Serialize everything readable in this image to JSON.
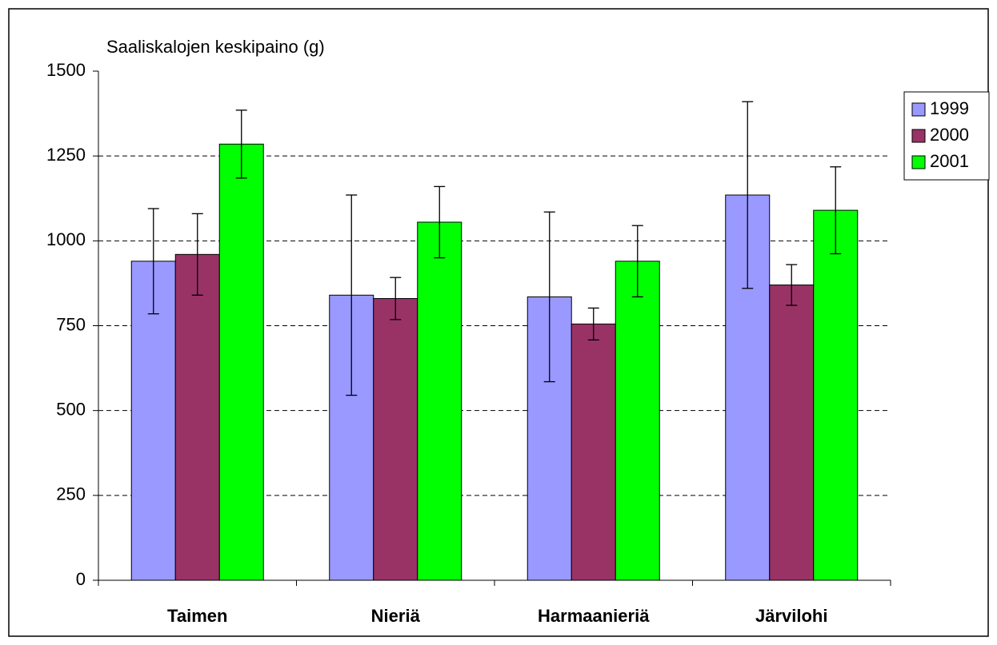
{
  "chart_data": {
    "type": "bar",
    "title": "Saaliskalojen keskipaino (g)",
    "categories": [
      "Taimen",
      "Nieriä",
      "Harmaanieriä",
      "Järvilohi"
    ],
    "series": [
      {
        "name": "1999",
        "color": "#9999ff",
        "values": [
          940,
          840,
          835,
          1135
        ],
        "errors": [
          155,
          295,
          250,
          275
        ]
      },
      {
        "name": "2000",
        "color": "#993366",
        "values": [
          960,
          830,
          755,
          870
        ],
        "errors": [
          120,
          62,
          47,
          60
        ]
      },
      {
        "name": "2001",
        "color": "#00ff00",
        "values": [
          1285,
          1055,
          940,
          1090
        ],
        "errors": [
          100,
          105,
          105,
          128
        ]
      }
    ],
    "ylim": [
      0,
      1500
    ],
    "yticks": [
      0,
      250,
      500,
      750,
      1000,
      1250,
      1500
    ],
    "grid": true,
    "legend": "right"
  }
}
